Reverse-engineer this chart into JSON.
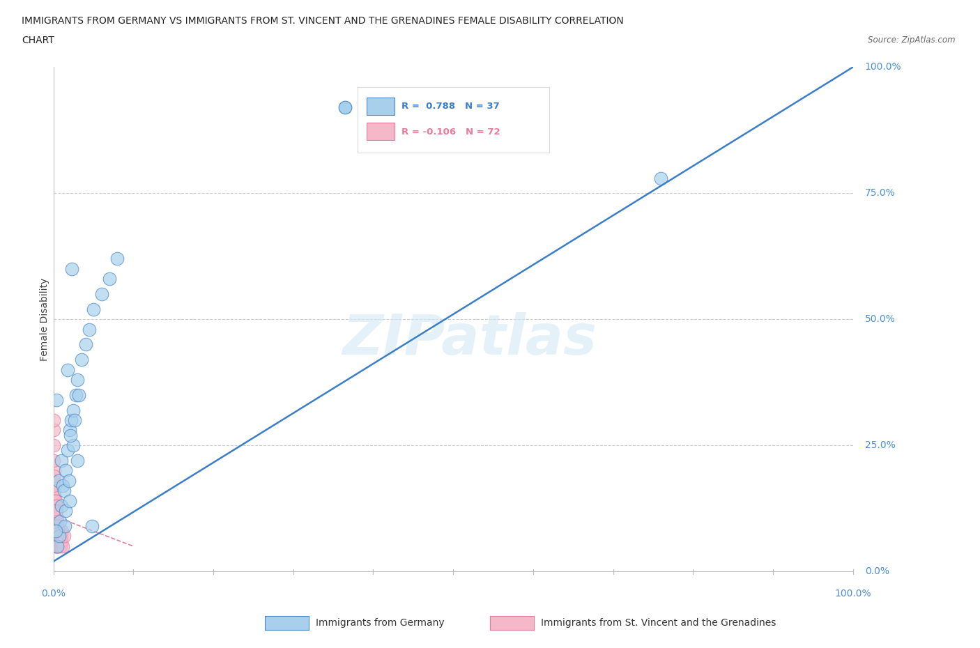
{
  "title_line1": "IMMIGRANTS FROM GERMANY VS IMMIGRANTS FROM ST. VINCENT AND THE GRENADINES FEMALE DISABILITY CORRELATION",
  "title_line2": "CHART",
  "source": "Source: ZipAtlas.com",
  "watermark": "ZIPatlas",
  "ylabel": "Female Disability",
  "legend_r1_text": "R =  0.788   N = 37",
  "legend_r2_text": "R = -0.106   N = 72",
  "label_germany": "Immigrants from Germany",
  "label_svg": "Immigrants from St. Vincent and the Grenadines",
  "color_germany_fill": "#A8D0EC",
  "color_germany_edge": "#4A86C8",
  "color_svg_fill": "#F5B8C8",
  "color_svg_edge": "#E87A9A",
  "color_line_germany": "#3B7EC8",
  "color_line_svg": "#F5B8C8",
  "color_r1_text": "#3B7EC8",
  "color_r2_text": "#E87A9A",
  "tick_color": "#4A90D9",
  "background": "#FFFFFF",
  "germany_x": [
    0.5,
    0.6,
    0.8,
    1.0,
    1.0,
    1.2,
    1.3,
    1.5,
    1.5,
    1.8,
    2.0,
    2.0,
    2.2,
    2.5,
    2.5,
    2.8,
    3.0,
    3.0,
    3.5,
    4.0,
    4.5,
    5.0,
    6.0,
    7.0,
    8.0,
    2.3,
    1.8,
    0.7,
    1.4,
    2.1,
    3.2,
    4.8,
    1.9,
    2.6,
    0.3,
    0.4,
    76.0
  ],
  "germany_y": [
    5.0,
    18.0,
    10.0,
    13.0,
    22.0,
    17.0,
    16.0,
    12.0,
    20.0,
    24.0,
    28.0,
    14.0,
    30.0,
    25.0,
    32.0,
    35.0,
    38.0,
    22.0,
    42.0,
    45.0,
    48.0,
    52.0,
    55.0,
    58.0,
    62.0,
    60.0,
    40.0,
    7.0,
    9.0,
    27.0,
    35.0,
    9.0,
    18.0,
    30.0,
    8.0,
    34.0,
    78.0
  ],
  "svg_x": [
    0.02,
    0.03,
    0.04,
    0.05,
    0.06,
    0.07,
    0.08,
    0.09,
    0.1,
    0.11,
    0.12,
    0.13,
    0.14,
    0.15,
    0.16,
    0.17,
    0.18,
    0.19,
    0.2,
    0.21,
    0.22,
    0.23,
    0.24,
    0.25,
    0.26,
    0.27,
    0.28,
    0.29,
    0.3,
    0.31,
    0.32,
    0.33,
    0.34,
    0.35,
    0.36,
    0.37,
    0.38,
    0.39,
    0.4,
    0.41,
    0.42,
    0.43,
    0.44,
    0.45,
    0.46,
    0.47,
    0.48,
    0.49,
    0.5,
    0.52,
    0.55,
    0.58,
    0.6,
    0.65,
    0.7,
    0.75,
    0.8,
    0.85,
    0.9,
    0.95,
    1.0,
    1.1,
    1.2,
    1.3,
    0.02,
    0.02,
    0.03,
    0.03,
    0.04,
    0.04,
    0.05,
    0.05
  ],
  "svg_y": [
    14.0,
    10.0,
    18.0,
    8.0,
    12.0,
    16.0,
    6.0,
    20.0,
    10.0,
    14.0,
    7.0,
    11.0,
    15.0,
    9.0,
    13.0,
    5.0,
    8.0,
    12.0,
    10.0,
    7.0,
    14.0,
    9.0,
    6.0,
    11.0,
    13.0,
    5.0,
    8.0,
    12.0,
    10.0,
    7.0,
    14.0,
    9.0,
    6.0,
    11.0,
    13.0,
    5.0,
    8.0,
    12.0,
    10.0,
    7.0,
    9.0,
    5.0,
    8.0,
    7.0,
    10.0,
    6.0,
    9.0,
    8.0,
    7.0,
    6.0,
    8.0,
    5.0,
    7.0,
    6.0,
    8.0,
    5.0,
    7.0,
    6.0,
    5.0,
    7.0,
    6.0,
    8.0,
    5.0,
    7.0,
    22.0,
    17.0,
    25.0,
    19.0,
    28.0,
    12.0,
    30.0,
    8.0
  ],
  "xlim": [
    0,
    100
  ],
  "ylim": [
    0,
    100
  ],
  "xtick_vals": [
    0,
    100
  ],
  "xtick_labels": [
    "0.0%",
    "100.0%"
  ],
  "ytick_vals": [
    0,
    25,
    50,
    75,
    100
  ],
  "ytick_labels": [
    "0.0%",
    "25.0%",
    "50.0%",
    "75.0%",
    "100.0%"
  ],
  "line_g_x0": 0,
  "line_g_y0": 2,
  "line_g_x1": 100,
  "line_g_y1": 100,
  "line_s_x0": 0,
  "line_s_y0": 11,
  "line_s_x1": 10,
  "line_s_y1": 5
}
